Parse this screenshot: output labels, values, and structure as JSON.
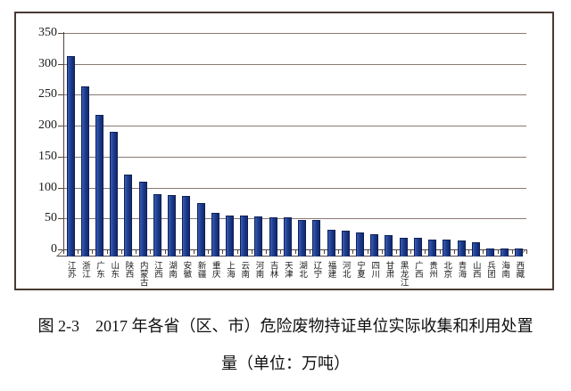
{
  "figure": {
    "caption_line1": "图 2-3　2017 年各省（区、市）危险废物持证单位实际收集和利用处置",
    "caption_line2": "量（单位：万吨）"
  },
  "chart_data": {
    "type": "bar",
    "title": "2017年各省（区、市）危险废物持证单位实际收集和利用处置量",
    "unit": "万吨",
    "categories": [
      "江苏",
      "浙江",
      "广东",
      "山东",
      "陕西",
      "内蒙古",
      "江西",
      "湖南",
      "安徽",
      "新疆",
      "重庆",
      "上海",
      "云南",
      "河南",
      "吉林",
      "天津",
      "湖北",
      "辽宁",
      "福建",
      "河北",
      "宁夏",
      "四川",
      "甘肃",
      "黑龙江",
      "广西",
      "贵州",
      "北京",
      "青海",
      "山西",
      "兵团",
      "海南",
      "西藏"
    ],
    "values": [
      312,
      264,
      217,
      190,
      121,
      109,
      89,
      88,
      87,
      75,
      59,
      55,
      54,
      53,
      52,
      52,
      48,
      47,
      32,
      30,
      28,
      24,
      23,
      19,
      18,
      16,
      16,
      14,
      12,
      2,
      2,
      1
    ],
    "ylim": [
      0,
      350
    ],
    "yticks": [
      0,
      50,
      100,
      150,
      200,
      250,
      300,
      350
    ],
    "xlabel": "",
    "ylabel": "",
    "grid": true,
    "legend": "none",
    "style_3d_floor": true,
    "colors": {
      "bar": "#1b3788",
      "bar_border": "#0e2156",
      "gridline": "#8a7a72",
      "axis": "#55453d",
      "frame": "#4a3a33",
      "text": "#1b1b1b"
    }
  }
}
